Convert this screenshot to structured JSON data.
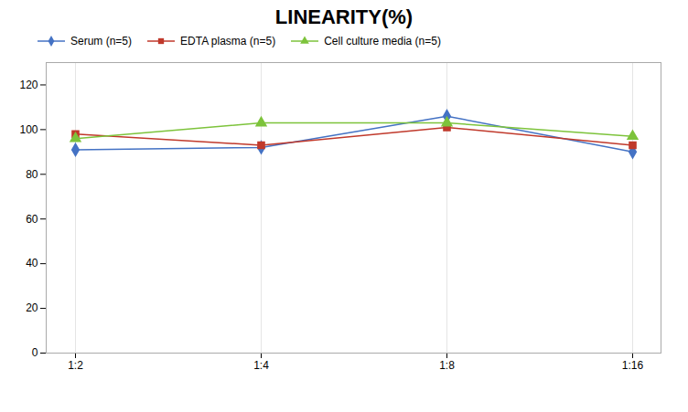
{
  "chart_data": {
    "type": "line",
    "title": "LINEARITY(%)",
    "categories": [
      "1:2",
      "1:4",
      "1:8",
      "1:16"
    ],
    "series": [
      {
        "name": "Serum (n=5)",
        "color": "#4472C4",
        "marker": "diamond",
        "values": [
          91,
          92,
          106,
          90
        ]
      },
      {
        "name": "EDTA plasma (n=5)",
        "color": "#C0392B",
        "marker": "square",
        "values": [
          98,
          93,
          101,
          93
        ]
      },
      {
        "name": "Cell culture media (n=5)",
        "color": "#7DC33B",
        "marker": "triangle",
        "values": [
          96,
          103,
          103,
          97
        ]
      }
    ],
    "ylim": [
      0,
      130
    ],
    "yticks": [
      0,
      20,
      40,
      60,
      80,
      100,
      120
    ],
    "grid": "x",
    "legend": "top"
  }
}
